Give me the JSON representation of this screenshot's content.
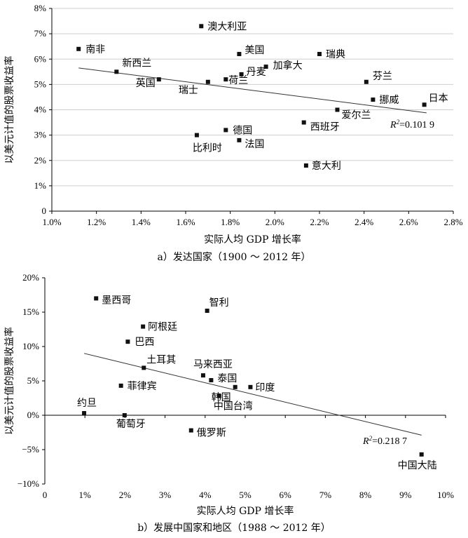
{
  "chart_data": [
    {
      "type": "scatter",
      "title": "",
      "caption": "a）发达国家（1900 ～ 2012 年）",
      "xlabel": "实际人均 GDP 增长率",
      "ylabel": "以美元计值的股票收益率",
      "xlim": [
        0.01,
        0.028
      ],
      "ylim": [
        0,
        0.08
      ],
      "x_ticks": [
        0.01,
        0.012,
        0.014,
        0.016,
        0.018,
        0.02,
        0.022,
        0.024,
        0.026,
        0.028
      ],
      "x_tick_labels": [
        "1.0%",
        "1.2%",
        "1.4%",
        "1.6%",
        "1.8%",
        "2.0%",
        "2.2%",
        "2.4%",
        "2.6%",
        "2.8%"
      ],
      "y_ticks": [
        0,
        0.01,
        0.02,
        0.03,
        0.04,
        0.05,
        0.06,
        0.07,
        0.08
      ],
      "y_tick_labels": [
        "0",
        "1%",
        "2%",
        "3%",
        "4%",
        "5%",
        "6%",
        "7%",
        "8%"
      ],
      "grid": true,
      "r2_prefix": "R",
      "r2_sup": "2",
      "r2_value": "=0.101 9",
      "trendline": {
        "x": [
          0.0112,
          0.0268
        ],
        "y": [
          0.0565,
          0.0388
        ]
      },
      "points": [
        {
          "label": "南非",
          "x": 0.0112,
          "y": 0.064
        },
        {
          "label": "新西兰",
          "x": 0.0129,
          "y": 0.055
        },
        {
          "label": "英国",
          "x": 0.0148,
          "y": 0.052
        },
        {
          "label": "瑞士",
          "x": 0.017,
          "y": 0.051
        },
        {
          "label": "澳大利亚",
          "x": 0.0167,
          "y": 0.073
        },
        {
          "label": "比利时",
          "x": 0.0165,
          "y": 0.03
        },
        {
          "label": "荷兰",
          "x": 0.0178,
          "y": 0.052
        },
        {
          "label": "德国",
          "x": 0.0178,
          "y": 0.032
        },
        {
          "label": "美国",
          "x": 0.0184,
          "y": 0.062
        },
        {
          "label": "丹麦",
          "x": 0.0185,
          "y": 0.054
        },
        {
          "label": "法国",
          "x": 0.0184,
          "y": 0.028
        },
        {
          "label": "加拿大",
          "x": 0.0196,
          "y": 0.057
        },
        {
          "label": "瑞典",
          "x": 0.022,
          "y": 0.062
        },
        {
          "label": "西班牙",
          "x": 0.0213,
          "y": 0.035
        },
        {
          "label": "意大利",
          "x": 0.0214,
          "y": 0.018
        },
        {
          "label": "爱尔兰",
          "x": 0.0228,
          "y": 0.04
        },
        {
          "label": "芬兰",
          "x": 0.0241,
          "y": 0.051
        },
        {
          "label": "挪威",
          "x": 0.0244,
          "y": 0.044
        },
        {
          "label": "日本",
          "x": 0.0267,
          "y": 0.042
        }
      ]
    },
    {
      "type": "scatter",
      "title": "",
      "caption": "b）发展中国家和地区（1988 ～ 2012 年）",
      "xlabel": "实际人均 GDP 增长率",
      "ylabel": "以美元计值的股票收益率",
      "xlim": [
        0,
        0.1
      ],
      "ylim": [
        -0.1,
        0.2
      ],
      "x_ticks": [
        0,
        0.01,
        0.02,
        0.03,
        0.04,
        0.05,
        0.06,
        0.07,
        0.08,
        0.09,
        0.1
      ],
      "x_tick_labels": [
        "0",
        "1%",
        "2%",
        "3%",
        "4%",
        "5%",
        "6%",
        "7%",
        "8%",
        "9%",
        "10%"
      ],
      "y_ticks": [
        -0.1,
        -0.05,
        0,
        0.05,
        0.1,
        0.15,
        0.2
      ],
      "y_tick_labels": [
        "−10%",
        "−5%",
        "0%",
        "5%",
        "10%",
        "15%",
        "20%"
      ],
      "grid": false,
      "r2_prefix": "R",
      "r2_sup": "2",
      "r2_value": "=0.218 7",
      "trendline": {
        "x": [
          0.0098,
          0.094
        ],
        "y": [
          0.09,
          -0.029
        ]
      },
      "points": [
        {
          "label": "墨西哥",
          "x": 0.0128,
          "y": 0.17
        },
        {
          "label": "智利",
          "x": 0.0405,
          "y": 0.152
        },
        {
          "label": "阿根廷",
          "x": 0.0245,
          "y": 0.129
        },
        {
          "label": "巴西",
          "x": 0.0207,
          "y": 0.107
        },
        {
          "label": "土耳其",
          "x": 0.0247,
          "y": 0.069
        },
        {
          "label": "马来西亚",
          "x": 0.0395,
          "y": 0.058
        },
        {
          "label": "泰国",
          "x": 0.0415,
          "y": 0.051
        },
        {
          "label": "菲律宾",
          "x": 0.019,
          "y": 0.043
        },
        {
          "label": "韩国",
          "x": 0.0475,
          "y": 0.041
        },
        {
          "label": "印度",
          "x": 0.0513,
          "y": 0.041
        },
        {
          "label": "中国台湾",
          "x": 0.0435,
          "y": 0.028
        },
        {
          "label": "约旦",
          "x": 0.0098,
          "y": 0.003
        },
        {
          "label": "葡萄牙",
          "x": 0.0199,
          "y": 0.0
        },
        {
          "label": "俄罗斯",
          "x": 0.0365,
          "y": -0.022
        },
        {
          "label": "中国大陆",
          "x": 0.094,
          "y": -0.057
        }
      ]
    }
  ]
}
